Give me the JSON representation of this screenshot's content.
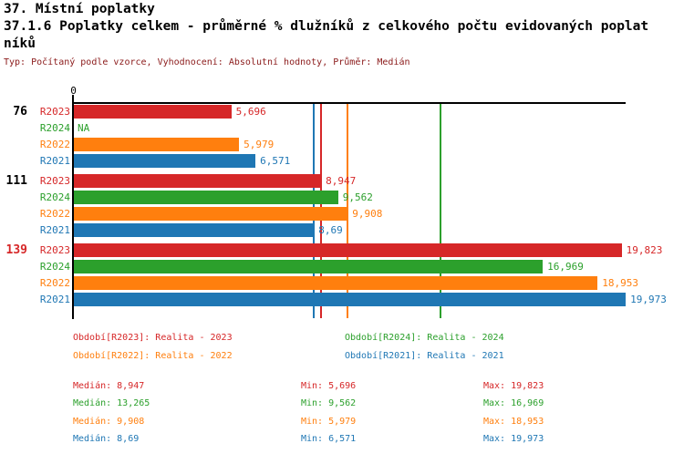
{
  "header": {
    "title": "37. Místní poplatky",
    "subtitle": "37.1.6 Poplatky celkem - průměrné % dlužníků z celkového počtu evidovaných poplatníků",
    "meta": "Typ: Počítaný podle vzorce, Vyhodnocení: Absolutní hodnoty, Průměr: Medián"
  },
  "colors": {
    "meta_text": "#8b1a1a",
    "axis": "#000000"
  },
  "chart_data": {
    "type": "bar",
    "orientation": "horizontal",
    "x_axis": {
      "min": 0,
      "max": 20,
      "zero_label": "0",
      "grid": false
    },
    "series_colors": {
      "R2023": "#d62728",
      "R2024": "#2ca02c",
      "R2022": "#ff7f0e",
      "R2021": "#1f77b4"
    },
    "groups": [
      {
        "label": "76",
        "label_color": "#000000",
        "rows": [
          {
            "series": "R2023",
            "value": 5.696,
            "display": "5,696"
          },
          {
            "series": "R2024",
            "value": null,
            "display": "NA"
          },
          {
            "series": "R2022",
            "value": 5.979,
            "display": "5,979"
          },
          {
            "series": "R2021",
            "value": 6.571,
            "display": "6,571"
          }
        ]
      },
      {
        "label": "111",
        "label_color": "#000000",
        "rows": [
          {
            "series": "R2023",
            "value": 8.947,
            "display": "8,947"
          },
          {
            "series": "R2024",
            "value": 9.562,
            "display": "9,562"
          },
          {
            "series": "R2022",
            "value": 9.908,
            "display": "9,908"
          },
          {
            "series": "R2021",
            "value": 8.69,
            "display": "8,69"
          }
        ]
      },
      {
        "label": "139",
        "label_color": "#d62728",
        "rows": [
          {
            "series": "R2023",
            "value": 19.823,
            "display": "19,823"
          },
          {
            "series": "R2024",
            "value": 16.969,
            "display": "16,969"
          },
          {
            "series": "R2022",
            "value": 18.953,
            "display": "18,953"
          },
          {
            "series": "R2021",
            "value": 19.973,
            "display": "19,973"
          }
        ]
      }
    ],
    "median_lines": [
      {
        "series": "R2023",
        "value": 8.947
      },
      {
        "series": "R2024",
        "value": 13.265
      },
      {
        "series": "R2022",
        "value": 9.908
      },
      {
        "series": "R2021",
        "value": 8.69
      }
    ]
  },
  "legend": {
    "items": [
      {
        "series": "R2023",
        "text": "Období[R2023]: Realita - 2023"
      },
      {
        "series": "R2024",
        "text": "Období[R2024]: Realita - 2024"
      },
      {
        "series": "R2022",
        "text": "Období[R2022]: Realita - 2022"
      },
      {
        "series": "R2021",
        "text": "Období[R2021]: Realita - 2021"
      }
    ]
  },
  "stats": {
    "rows": [
      {
        "series": "R2023",
        "median": "Medián: 8,947",
        "min": "Min: 5,696",
        "max": "Max: 19,823"
      },
      {
        "series": "R2024",
        "median": "Medián: 13,265",
        "min": "Min: 9,562",
        "max": "Max: 16,969"
      },
      {
        "series": "R2022",
        "median": "Medián: 9,908",
        "min": "Min: 5,979",
        "max": "Max: 18,953"
      },
      {
        "series": "R2021",
        "median": "Medián: 8,69",
        "min": "Min: 6,571",
        "max": "Max: 19,973"
      }
    ]
  }
}
